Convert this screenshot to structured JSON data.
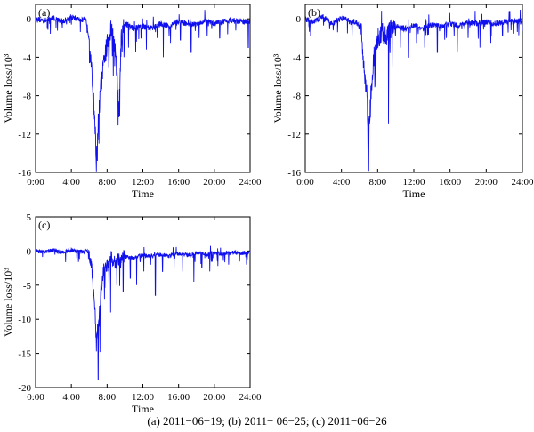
{
  "caption": "(a) 2011−06−19; (b) 2011− 06−25; (c) 2011−06−26",
  "colors": {
    "series": "#1010ee",
    "axis": "#000000"
  },
  "chart_data": [
    {
      "type": "line",
      "panel_label": "(a)",
      "xlabel": "Time",
      "ylabel": "Volume loss/10³",
      "xticks": [
        "0:00",
        "4:00",
        "8:00",
        "12:00",
        "16:00",
        "20:00",
        "24:00"
      ],
      "yticks": [
        0,
        -4,
        -8,
        -12,
        -16
      ],
      "xlim": [
        0,
        24
      ],
      "ylim": [
        -16,
        1.5
      ],
      "keypoints": [
        [
          0,
          0
        ],
        [
          1,
          -0.2
        ],
        [
          2,
          0.1
        ],
        [
          3,
          -0.3
        ],
        [
          4,
          0.2
        ],
        [
          5,
          -0.1
        ],
        [
          5.6,
          0.1
        ],
        [
          6,
          -2
        ],
        [
          6.3,
          -6
        ],
        [
          6.6,
          -10
        ],
        [
          6.8,
          -14.8
        ],
        [
          7,
          -11
        ],
        [
          7.3,
          -7
        ],
        [
          7.6,
          -5
        ],
        [
          8,
          -2.5
        ],
        [
          8.5,
          -1
        ],
        [
          9,
          -4
        ],
        [
          9.3,
          -10
        ],
        [
          9.6,
          -2
        ],
        [
          10,
          -0.5
        ],
        [
          11,
          -1
        ],
        [
          12,
          -0.8
        ],
        [
          13,
          -1
        ],
        [
          14,
          -0.5
        ],
        [
          15,
          -0.8
        ],
        [
          16,
          -0.3
        ],
        [
          17,
          -0.5
        ],
        [
          18,
          -0.6
        ],
        [
          19,
          -0.2
        ],
        [
          20,
          -0.5
        ],
        [
          21,
          -0.3
        ],
        [
          22,
          -0.2
        ],
        [
          23,
          -0.3
        ],
        [
          24,
          -0.3
        ]
      ],
      "spikes": [
        [
          6.9,
          -14.8
        ],
        [
          7.1,
          -13
        ],
        [
          8.2,
          -5
        ],
        [
          8.7,
          -6
        ],
        [
          9.35,
          -10.2
        ],
        [
          9.9,
          -4
        ],
        [
          10.4,
          -3
        ],
        [
          11.2,
          -3.5
        ],
        [
          11.8,
          -2
        ],
        [
          12.4,
          -3.2
        ],
        [
          13.6,
          -2
        ],
        [
          14.3,
          -4
        ],
        [
          15.1,
          -2.5
        ],
        [
          16.2,
          -2.2
        ],
        [
          17.4,
          -3.5
        ],
        [
          18.3,
          -2
        ],
        [
          19.2,
          -1.8
        ],
        [
          20.6,
          -2
        ],
        [
          21.5,
          -1.6
        ],
        [
          22.4,
          -1.2
        ],
        [
          23.8,
          -3
        ]
      ]
    },
    {
      "type": "line",
      "panel_label": "(b)",
      "xlabel": "Time",
      "ylabel": "Volume loss/10³",
      "xticks": [
        "0:00",
        "4:00",
        "8:00",
        "12:00",
        "16:00",
        "20:00",
        "24:00"
      ],
      "yticks": [
        0,
        -4,
        -8,
        -12,
        -16
      ],
      "xlim": [
        0,
        24
      ],
      "ylim": [
        -16,
        1.5
      ],
      "keypoints": [
        [
          0,
          0
        ],
        [
          1,
          -0.3
        ],
        [
          2,
          0.2
        ],
        [
          3,
          -0.5
        ],
        [
          4,
          0.1
        ],
        [
          5,
          -0.3
        ],
        [
          5.8,
          -0.4
        ],
        [
          6.2,
          -1.5
        ],
        [
          6.5,
          -5
        ],
        [
          6.8,
          -8
        ],
        [
          7,
          -12
        ],
        [
          7.3,
          -7
        ],
        [
          7.6,
          -4
        ],
        [
          8,
          -2
        ],
        [
          8.5,
          -1.5
        ],
        [
          9,
          -2
        ],
        [
          9.5,
          -1
        ],
        [
          10,
          -0.8
        ],
        [
          11,
          -1
        ],
        [
          12,
          -0.7
        ],
        [
          13,
          -1
        ],
        [
          14,
          -0.6
        ],
        [
          15,
          -0.8
        ],
        [
          16,
          -0.5
        ],
        [
          17,
          -0.7
        ],
        [
          18,
          -0.4
        ],
        [
          19,
          -0.5
        ],
        [
          20,
          -0.3
        ],
        [
          21,
          -0.5
        ],
        [
          22,
          -0.3
        ],
        [
          23,
          -0.2
        ],
        [
          24,
          -0.3
        ]
      ],
      "spikes": [
        [
          7,
          -15.8
        ],
        [
          7.2,
          -10.3
        ],
        [
          7.8,
          -7
        ],
        [
          9.2,
          -10.9
        ],
        [
          9.6,
          -5
        ],
        [
          10.5,
          -3
        ],
        [
          11.4,
          -4
        ],
        [
          12.3,
          -2.5
        ],
        [
          13.2,
          -3
        ],
        [
          14.6,
          -3.5
        ],
        [
          15.6,
          -2
        ],
        [
          16.8,
          -3.5
        ],
        [
          18,
          -2
        ],
        [
          19.3,
          -3
        ],
        [
          20.5,
          -2.5
        ],
        [
          21.8,
          -1.8
        ],
        [
          23,
          -1.5
        ]
      ]
    },
    {
      "type": "line",
      "panel_label": "(c)",
      "xlabel": "Time",
      "ylabel": "Volume loss/10³",
      "xticks": [
        "0:00",
        "4:00",
        "8:00",
        "12:00",
        "16:00",
        "20:00",
        "24:00"
      ],
      "yticks": [
        5,
        0,
        -5,
        -10,
        -15,
        -20
      ],
      "xlim": [
        0,
        24
      ],
      "ylim": [
        -20,
        5
      ],
      "keypoints": [
        [
          0,
          0
        ],
        [
          1,
          -0.1
        ],
        [
          2,
          0.1
        ],
        [
          3,
          -0.2
        ],
        [
          4,
          0.1
        ],
        [
          5,
          -0.1
        ],
        [
          6,
          0
        ],
        [
          6.3,
          -3
        ],
        [
          6.6,
          -8
        ],
        [
          6.8,
          -13
        ],
        [
          7,
          -10
        ],
        [
          7.3,
          -6
        ],
        [
          7.6,
          -3
        ],
        [
          8,
          -2
        ],
        [
          8.5,
          -1
        ],
        [
          9,
          -1.5
        ],
        [
          9.5,
          -1
        ],
        [
          10,
          -0.8
        ],
        [
          11,
          -1
        ],
        [
          12,
          -0.6
        ],
        [
          13,
          -0.8
        ],
        [
          14,
          -0.5
        ],
        [
          15,
          -0.7
        ],
        [
          16,
          -0.4
        ],
        [
          17,
          -0.6
        ],
        [
          18,
          -0.3
        ],
        [
          19,
          -0.5
        ],
        [
          20,
          -0.3
        ],
        [
          21,
          -0.4
        ],
        [
          22,
          -0.2
        ],
        [
          23,
          -0.3
        ],
        [
          24,
          -0.2
        ]
      ],
      "spikes": [
        [
          7,
          -18.8
        ],
        [
          7.2,
          -14.8
        ],
        [
          7.7,
          -7
        ],
        [
          8.4,
          -9
        ],
        [
          9.1,
          -5
        ],
        [
          9.8,
          -6
        ],
        [
          10.6,
          -4
        ],
        [
          11.3,
          -5
        ],
        [
          12.1,
          -3
        ],
        [
          13.4,
          -6.5
        ],
        [
          14.2,
          -3
        ],
        [
          15.5,
          -2.5
        ],
        [
          16.4,
          -3
        ],
        [
          17.7,
          -4.5
        ],
        [
          18.6,
          -2.5
        ],
        [
          19.5,
          -3
        ],
        [
          20.4,
          -2.2
        ],
        [
          21.6,
          -2
        ],
        [
          22.8,
          -1.5
        ],
        [
          23.6,
          -2
        ]
      ]
    }
  ]
}
